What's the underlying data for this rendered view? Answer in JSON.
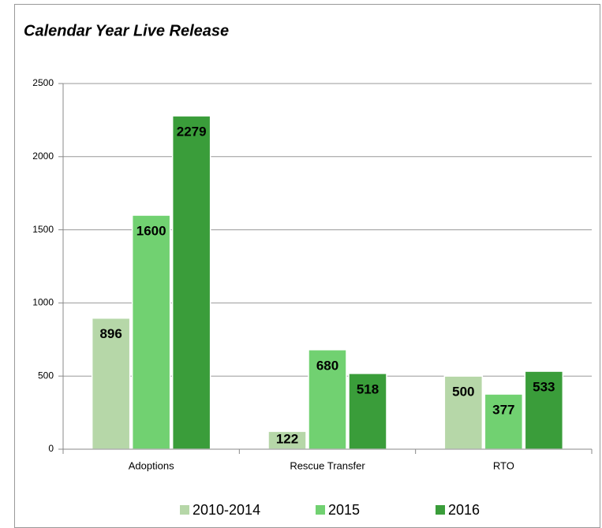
{
  "chart_data": {
    "type": "bar",
    "title": "Calendar Year Live Release",
    "categories": [
      "Adoptions",
      "Rescue Transfer",
      "RTO"
    ],
    "series": [
      {
        "name": "2010-2014",
        "color": "#b6d7a8",
        "values": [
          896,
          122,
          500
        ]
      },
      {
        "name": "2015",
        "color": "#71d171",
        "values": [
          1600,
          680,
          377
        ]
      },
      {
        "name": "2016",
        "color": "#3a9d3a",
        "values": [
          2279,
          518,
          533
        ]
      }
    ],
    "ylim": [
      0,
      2500
    ],
    "yticks": [
      0,
      500,
      1000,
      1500,
      2000,
      2500
    ],
    "grid": true,
    "legend": "bottom"
  }
}
